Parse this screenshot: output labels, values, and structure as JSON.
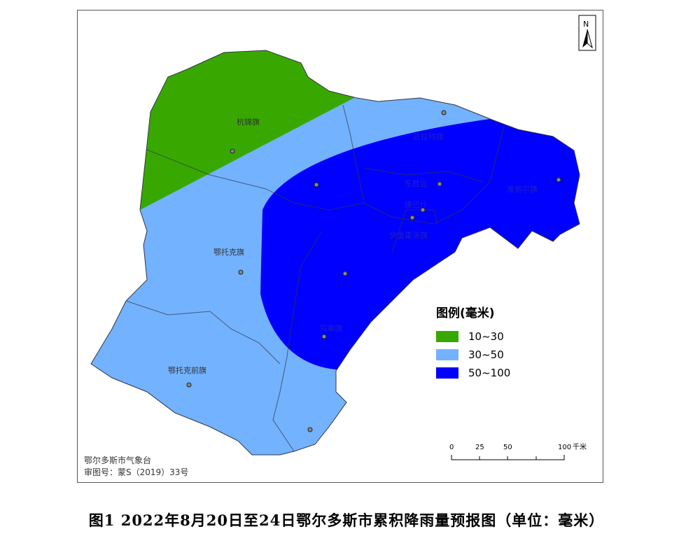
{
  "map": {
    "regions": [
      "杭锦旗",
      "达拉特旗",
      "东胜区",
      "康巴什",
      "伊金霍洛旗",
      "准格尔旗",
      "鄂托克旗",
      "乌审旗",
      "鄂托克前旗"
    ],
    "north_label": "N",
    "legend": {
      "title": "图例(毫米)",
      "items": [
        {
          "label": "10~30",
          "color": "#38a800"
        },
        {
          "label": "30~50",
          "color": "#73b2ff"
        },
        {
          "label": "50~100",
          "color": "#0000ff"
        }
      ]
    },
    "scale": {
      "ticks": [
        "0",
        "25",
        "50",
        "100"
      ],
      "unit": "千米"
    },
    "credit": [
      "鄂尔多斯市气象台",
      "审图号：蒙S（2019）33号"
    ]
  },
  "caption": "图1  2022年8月20日至24日鄂尔多斯市累积降雨量预报图（单位：毫米）"
}
